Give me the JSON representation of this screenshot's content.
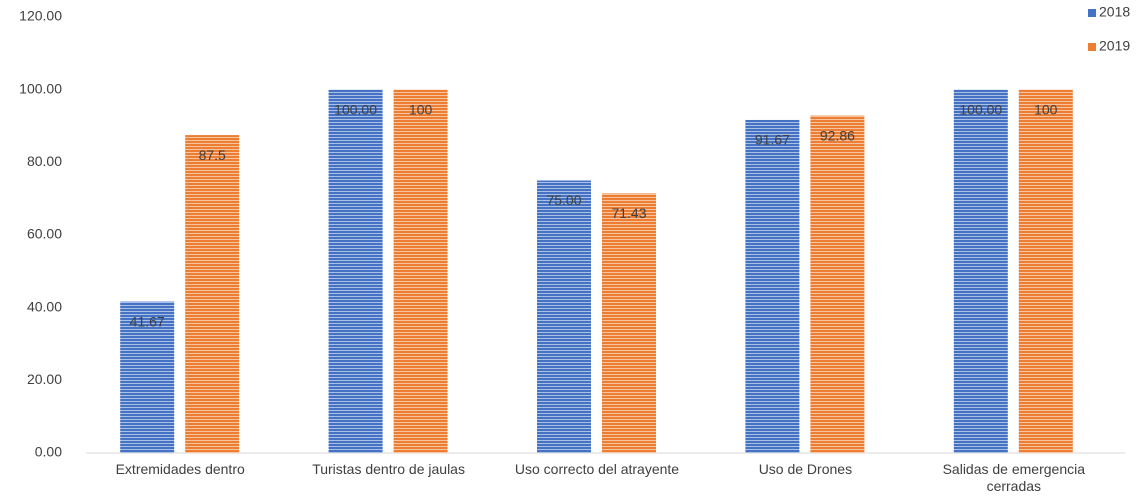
{
  "chart_data": {
    "type": "bar",
    "categories": [
      "Extremidades dentro",
      "Turistas dentro de jaulas",
      "Uso correcto del atrayente",
      "Uso de Drones",
      "Salidas de emergencia cerradas"
    ],
    "series": [
      {
        "name": "2018",
        "color": "#4472c4",
        "values": [
          41.67,
          100,
          75,
          91.67,
          100
        ],
        "value_labels": [
          "41.67",
          "100.00",
          "75.00",
          "91.67",
          "100.00"
        ]
      },
      {
        "name": "2019",
        "color": "#ed7d31",
        "values": [
          87.5,
          100,
          71.43,
          92.86,
          100
        ]
      }
    ],
    "ylim": [
      0,
      120
    ],
    "yticks": [
      {
        "value": 0,
        "label": "0.00"
      },
      {
        "value": 20,
        "label": "20.00"
      },
      {
        "value": 40,
        "label": "40.00"
      },
      {
        "value": 60,
        "label": "60.00"
      },
      {
        "value": 80,
        "label": "80.00"
      },
      {
        "value": 100,
        "label": "100.00"
      },
      {
        "value": 120,
        "label": "120.00"
      }
    ],
    "grid": false,
    "legend": "top-right"
  }
}
